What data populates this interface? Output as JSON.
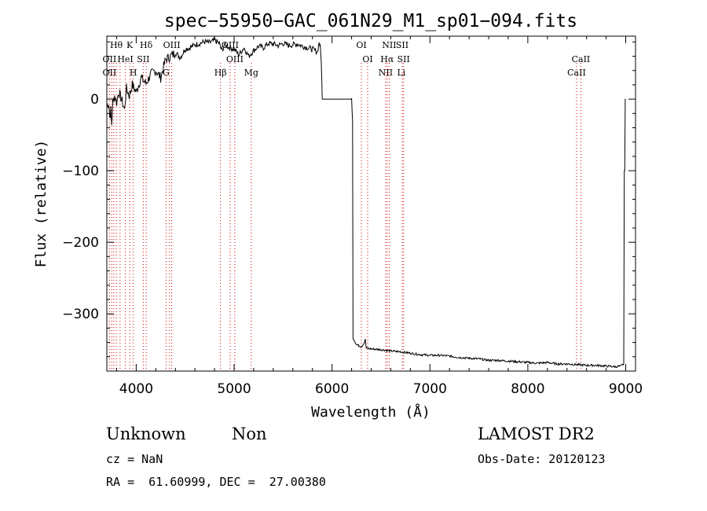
{
  "chart_data": {
    "type": "line",
    "title": "spec−55950−GAC_061N29_M1_sp01−094.fits",
    "xlabel": "Wavelength (Å)",
    "ylabel": "Flux (relative)",
    "xlim": [
      3700,
      9100
    ],
    "ylim": [
      -380,
      88
    ],
    "x_ticks": [
      4000,
      5000,
      6000,
      7000,
      8000,
      9000
    ],
    "x_tick_labels": [
      "4000",
      "5000",
      "6000",
      "7000",
      "8000",
      "9000"
    ],
    "y_ticks": [
      0,
      -100,
      -200,
      -300
    ],
    "y_tick_labels": [
      "0",
      "−100",
      "−200",
      "−300"
    ],
    "grid": false,
    "series": [
      {
        "color": "#000000",
        "x": [
          3700,
          3720,
          3730,
          3740,
          3750,
          3760,
          3780,
          3800,
          3820,
          3850,
          3880,
          3900,
          3930,
          3960,
          4000,
          4050,
          4100,
          4150,
          4200,
          4250,
          4300,
          4350,
          4400,
          4450,
          4500,
          4550,
          4600,
          4650,
          4700,
          4750,
          4800,
          4850,
          4861,
          4880,
          4900,
          4950,
          5000,
          5050,
          5100,
          5150,
          5200,
          5250,
          5300,
          5350,
          5400,
          5450,
          5500,
          5550,
          5600,
          5650,
          5700,
          5750,
          5800,
          5850,
          5870,
          5880,
          5890,
          5900,
          5920,
          5940,
          6000,
          6100,
          6150,
          6200,
          6210,
          6220,
          6250,
          6300,
          6330,
          6340,
          6350,
          6400,
          6500,
          6600,
          6700,
          6800,
          6900,
          7000,
          7100,
          7200,
          7300,
          7400,
          7500,
          7600,
          7700,
          7800,
          7900,
          8000,
          8100,
          8200,
          8300,
          8400,
          8500,
          8600,
          8700,
          8800,
          8900,
          8950,
          8980,
          8990,
          9000
        ],
        "y": [
          -10,
          -5,
          -25,
          -15,
          -35,
          -5,
          5,
          -5,
          10,
          0,
          -15,
          15,
          5,
          20,
          10,
          30,
          22,
          35,
          40,
          30,
          55,
          60,
          65,
          58,
          70,
          72,
          76,
          78,
          80,
          79,
          82,
          78,
          72,
          68,
          76,
          72,
          70,
          62,
          72,
          60,
          68,
          74,
          72,
          78,
          77,
          75,
          78,
          75,
          76,
          77,
          74,
          72,
          70,
          66,
          80,
          72,
          55,
          0,
          0,
          0,
          0,
          0,
          0,
          0,
          -30,
          -335,
          -343,
          -346,
          -340,
          -336,
          -348,
          -349,
          -350,
          -352,
          -353,
          -355,
          -357,
          -358,
          -358,
          -359,
          -361,
          -362,
          -363,
          -365,
          -365,
          -366,
          -367,
          -368,
          -369,
          -368,
          -370,
          -370,
          -371,
          -372,
          -372,
          -373,
          -374,
          -373,
          -370,
          -100,
          0
        ]
      }
    ],
    "line_markers": [
      {
        "label": "Hθ",
        "x": 3797,
        "row": 0
      },
      {
        "label": "K",
        "x": 3934,
        "row": 0
      },
      {
        "label": "Hδ",
        "x": 4102,
        "row": 0
      },
      {
        "label": "OII",
        "x": 3727,
        "row": 1
      },
      {
        "label": "HeI",
        "x": 3889,
        "row": 1
      },
      {
        "label": "SII",
        "x": 4072,
        "row": 1
      },
      {
        "label": "OIII",
        "x": 4363,
        "row": 0
      },
      {
        "label": "OIII",
        "x": 4959,
        "row": 0
      },
      {
        "label": "OIII",
        "x": 5007,
        "row": 1
      },
      {
        "label": "OII",
        "x": 3727,
        "row": 2
      },
      {
        "label": "H",
        "x": 3970,
        "row": 2
      },
      {
        "label": "G",
        "x": 4305,
        "row": 2
      },
      {
        "label": "Hβ",
        "x": 4861,
        "row": 2
      },
      {
        "label": "Mg",
        "x": 5175,
        "row": 2
      },
      {
        "label": "OI",
        "x": 6300,
        "row": 0
      },
      {
        "label": "OI",
        "x": 6364,
        "row": 1
      },
      {
        "label": "NII",
        "x": 6584,
        "row": 0
      },
      {
        "label": "SII",
        "x": 6717,
        "row": 0
      },
      {
        "label": "Hα",
        "x": 6563,
        "row": 1
      },
      {
        "label": "SII",
        "x": 6731,
        "row": 1
      },
      {
        "label": "NII",
        "x": 6548,
        "row": 2
      },
      {
        "label": "Li",
        "x": 6708,
        "row": 2
      },
      {
        "label": "CaII",
        "x": 8542,
        "row": 1
      },
      {
        "label": "CaII",
        "x": 8498,
        "row": 2
      }
    ],
    "marker_lines_x": [
      3727,
      3750,
      3771,
      3797,
      3835,
      3889,
      3934,
      3970,
      4072,
      4102,
      4305,
      4340,
      4363,
      4861,
      4959,
      5007,
      5175,
      6300,
      6364,
      6548,
      6563,
      6584,
      6717,
      6731,
      8498,
      8542
    ]
  },
  "info": {
    "class": "Unknown",
    "subclass": "Non",
    "survey": "LAMOST DR2",
    "cz": "cz = NaN",
    "obs_date": "Obs-Date: 20120123",
    "coords": "RA =  61.60999, DEC =  27.00380"
  }
}
